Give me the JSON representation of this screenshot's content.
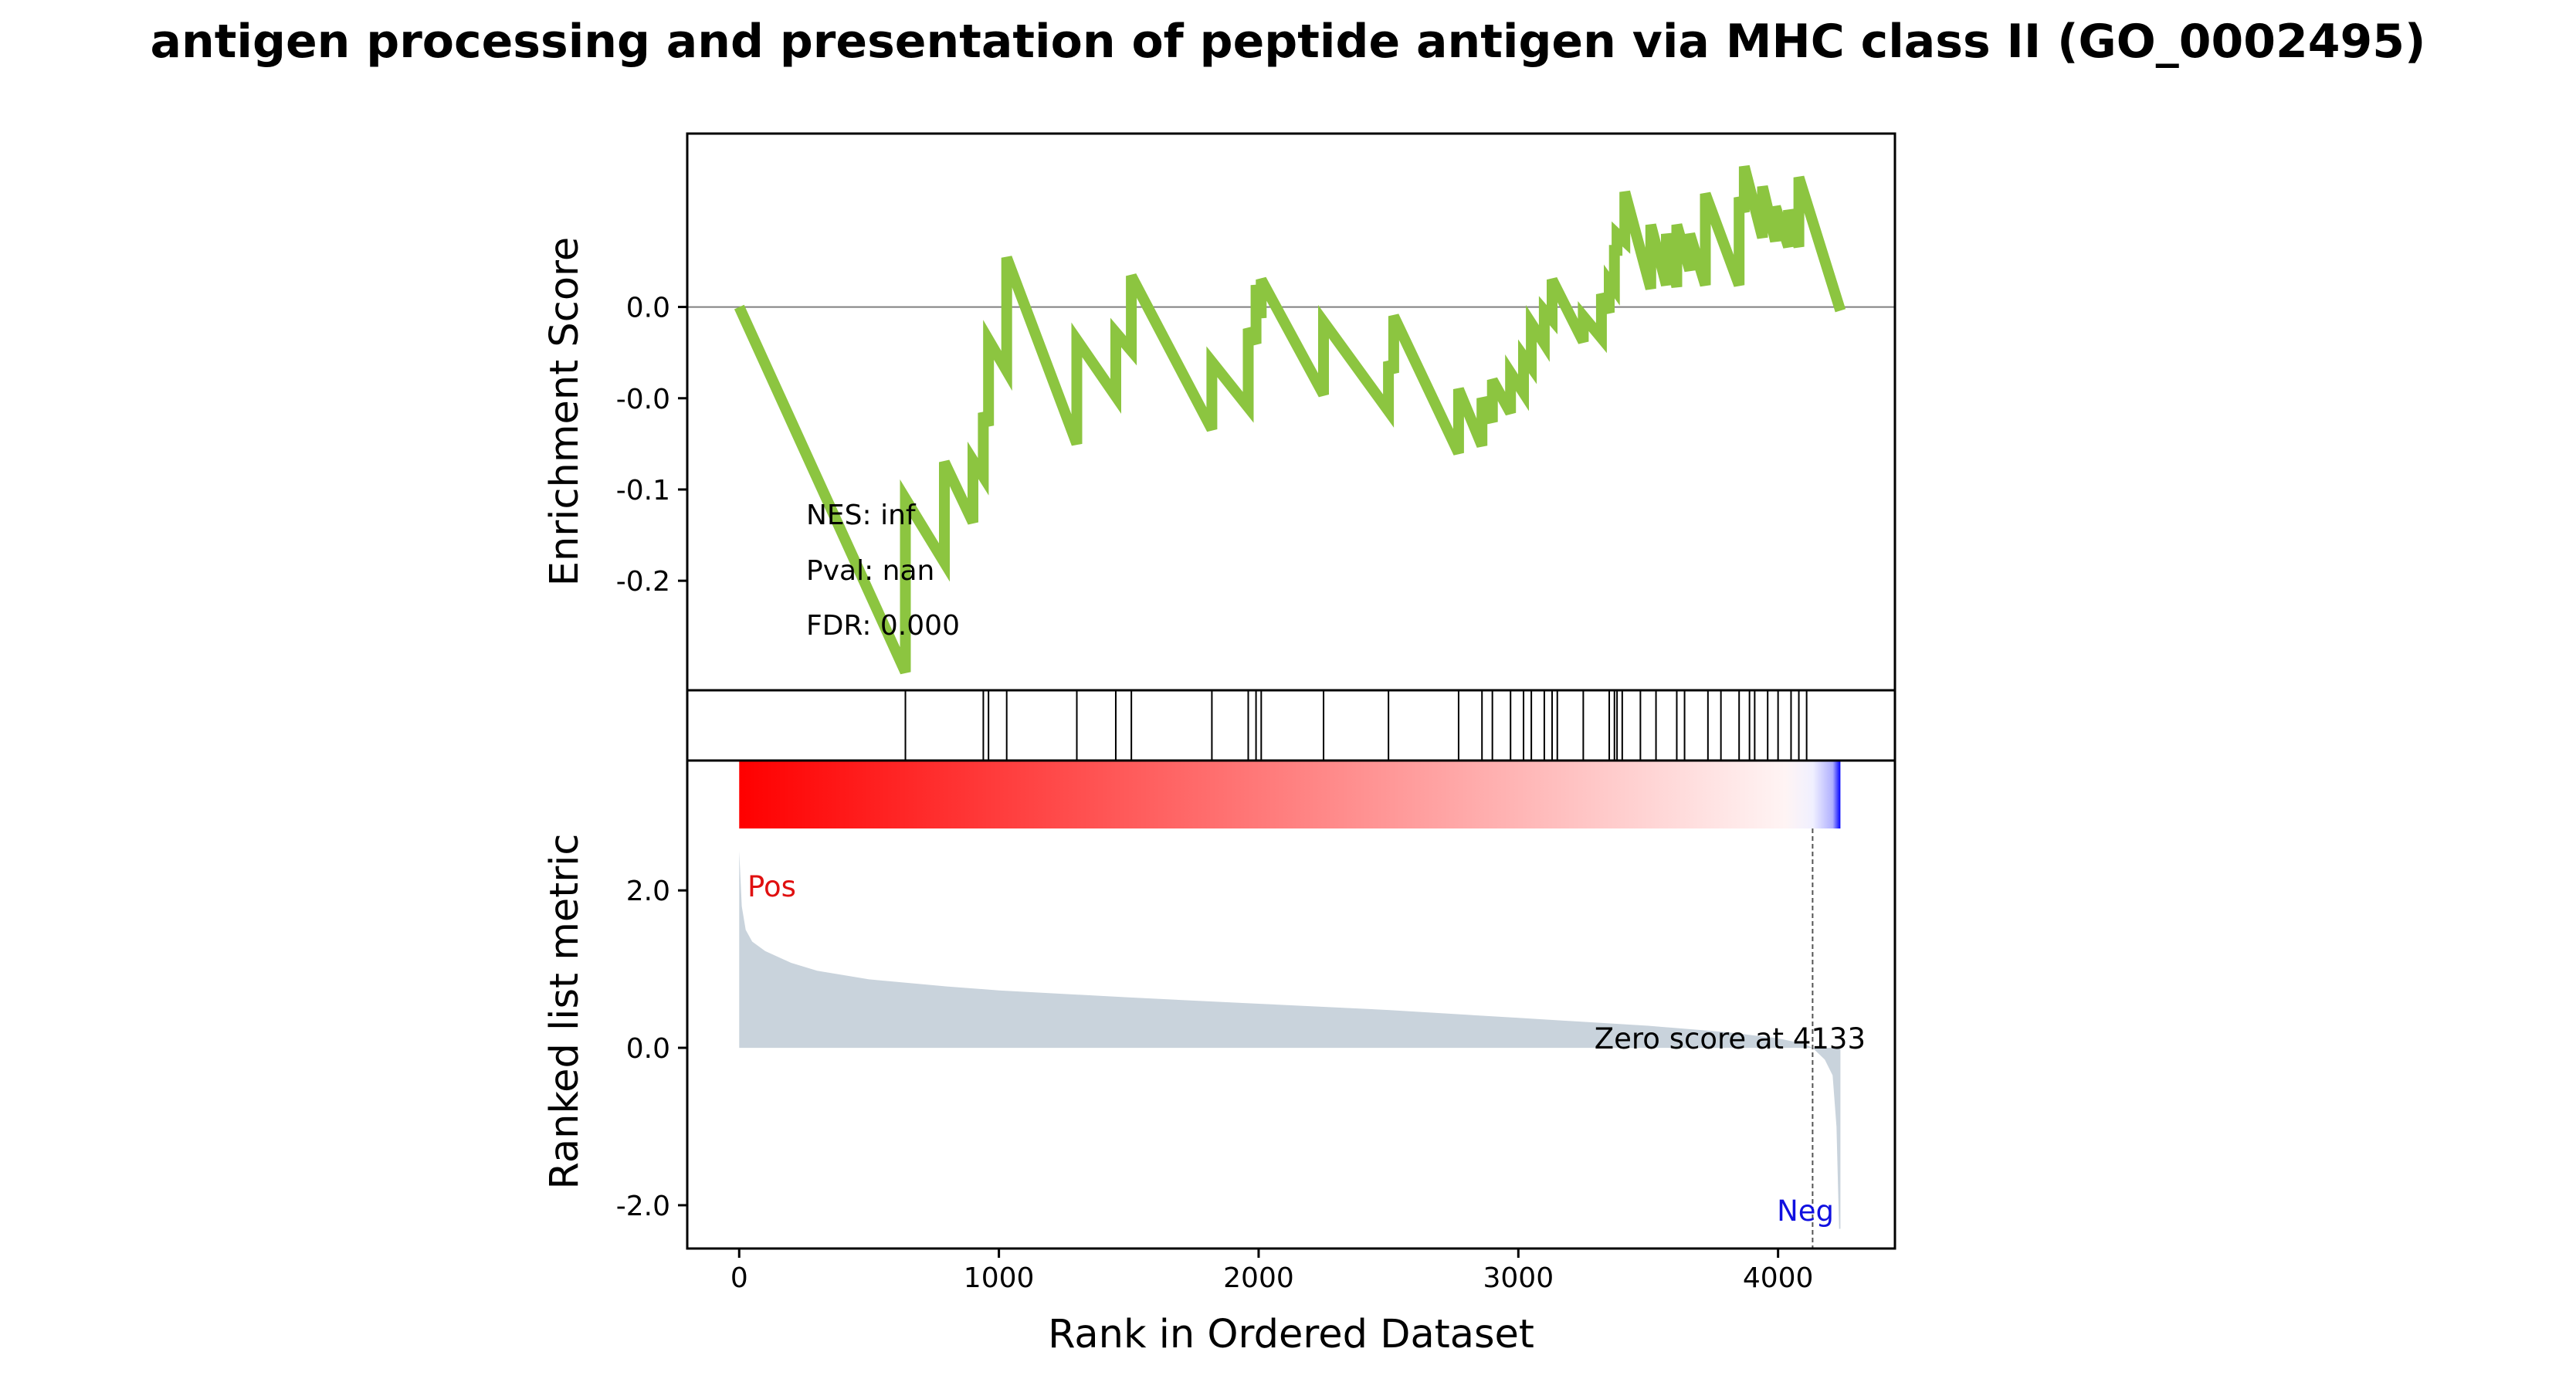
{
  "chart_data": {
    "type": "line",
    "title": "antigen processing and presentation of peptide antigen via MHC class II (GO_0002495)",
    "xlabel": "Rank in Ordered Dataset",
    "xlim": [
      -200,
      4450
    ],
    "x_ticks": [
      0,
      1000,
      2000,
      3000,
      4000
    ],
    "n_genes": 4240,
    "colors": {
      "es_line": "#8cc540",
      "metric_fill": "#c9d3dc",
      "pos_label": "#e01010",
      "neg_label": "#1010e0",
      "heat_pos": "#ff0000",
      "heat_neg": "#0000ff",
      "zero_line": "#808080"
    },
    "enrichment_panel": {
      "ylabel": "Enrichment Score",
      "ylim": [
        -0.21,
        0.095
      ],
      "y_ticks": [
        {
          "value": 0.0,
          "label": "0.0"
        },
        {
          "value": -0.05,
          "label": "-0.0"
        },
        {
          "value": -0.1,
          "label": "-0.1"
        },
        {
          "value": -0.15,
          "label": "-0.2"
        }
      ],
      "hline": 0.0,
      "es_max": 0.075,
      "es_min": -0.2,
      "hit_ranks": [
        640,
        940,
        960,
        1030,
        1300,
        1450,
        1510,
        1820,
        1960,
        1990,
        2010,
        2250,
        2500,
        2770,
        2860,
        2900,
        2970,
        3020,
        3050,
        3100,
        3130,
        3150,
        3250,
        3350,
        3370,
        3380,
        3400,
        3470,
        3530,
        3610,
        3640,
        3730,
        3780,
        3850,
        3890,
        3910,
        3960,
        4000,
        4050,
        4080,
        4110
      ],
      "es_points": [
        {
          "x": 0,
          "y": 0.0
        },
        {
          "x": 640,
          "y": -0.2
        },
        {
          "x": 640,
          "y": -0.105
        },
        {
          "x": 790,
          "y": -0.14
        },
        {
          "x": 790,
          "y": -0.085
        },
        {
          "x": 900,
          "y": -0.118
        },
        {
          "x": 900,
          "y": -0.084
        },
        {
          "x": 940,
          "y": -0.093
        },
        {
          "x": 940,
          "y": -0.058
        },
        {
          "x": 960,
          "y": -0.065
        },
        {
          "x": 960,
          "y": -0.018
        },
        {
          "x": 1030,
          "y": -0.035
        },
        {
          "x": 1030,
          "y": 0.027
        },
        {
          "x": 1300,
          "y": -0.075
        },
        {
          "x": 1300,
          "y": -0.018
        },
        {
          "x": 1450,
          "y": -0.049
        },
        {
          "x": 1450,
          "y": -0.014
        },
        {
          "x": 1510,
          "y": -0.024
        },
        {
          "x": 1510,
          "y": 0.017
        },
        {
          "x": 1820,
          "y": -0.067
        },
        {
          "x": 1820,
          "y": -0.03
        },
        {
          "x": 1960,
          "y": -0.055
        },
        {
          "x": 1960,
          "y": -0.012
        },
        {
          "x": 1990,
          "y": -0.02
        },
        {
          "x": 1990,
          "y": 0.012
        },
        {
          "x": 2010,
          "y": -0.006
        },
        {
          "x": 2010,
          "y": 0.015
        },
        {
          "x": 2250,
          "y": -0.048
        },
        {
          "x": 2250,
          "y": -0.008
        },
        {
          "x": 2500,
          "y": -0.057
        },
        {
          "x": 2500,
          "y": -0.03
        },
        {
          "x": 2520,
          "y": -0.036
        },
        {
          "x": 2520,
          "y": -0.005
        },
        {
          "x": 2770,
          "y": -0.08
        },
        {
          "x": 2770,
          "y": -0.045
        },
        {
          "x": 2860,
          "y": -0.076
        },
        {
          "x": 2860,
          "y": -0.05
        },
        {
          "x": 2900,
          "y": -0.063
        },
        {
          "x": 2900,
          "y": -0.04
        },
        {
          "x": 2970,
          "y": -0.058
        },
        {
          "x": 2970,
          "y": -0.036
        },
        {
          "x": 3020,
          "y": -0.047
        },
        {
          "x": 3020,
          "y": -0.027
        },
        {
          "x": 3050,
          "y": -0.033
        },
        {
          "x": 3050,
          "y": -0.009
        },
        {
          "x": 3100,
          "y": -0.02
        },
        {
          "x": 3100,
          "y": -0.002
        },
        {
          "x": 3130,
          "y": -0.007
        },
        {
          "x": 3130,
          "y": 0.015
        },
        {
          "x": 3250,
          "y": -0.019
        },
        {
          "x": 3250,
          "y": -0.005
        },
        {
          "x": 3320,
          "y": -0.017
        },
        {
          "x": 3320,
          "y": 0.007
        },
        {
          "x": 3350,
          "y": -0.003
        },
        {
          "x": 3350,
          "y": 0.014
        },
        {
          "x": 3370,
          "y": 0.01
        },
        {
          "x": 3370,
          "y": 0.031
        },
        {
          "x": 3380,
          "y": 0.031
        },
        {
          "x": 3380,
          "y": 0.04
        },
        {
          "x": 3410,
          "y": 0.036
        },
        {
          "x": 3410,
          "y": 0.063
        },
        {
          "x": 3510,
          "y": 0.01
        },
        {
          "x": 3510,
          "y": 0.045
        },
        {
          "x": 3570,
          "y": 0.012
        },
        {
          "x": 3570,
          "y": 0.04
        },
        {
          "x": 3610,
          "y": 0.011
        },
        {
          "x": 3610,
          "y": 0.045
        },
        {
          "x": 3660,
          "y": 0.02
        },
        {
          "x": 3660,
          "y": 0.04
        },
        {
          "x": 3720,
          "y": 0.012
        },
        {
          "x": 3720,
          "y": 0.062
        },
        {
          "x": 3850,
          "y": 0.012
        },
        {
          "x": 3850,
          "y": 0.06
        },
        {
          "x": 3870,
          "y": 0.052
        },
        {
          "x": 3870,
          "y": 0.077
        },
        {
          "x": 3940,
          "y": 0.038
        },
        {
          "x": 3940,
          "y": 0.066
        },
        {
          "x": 3990,
          "y": 0.036
        },
        {
          "x": 3990,
          "y": 0.055
        },
        {
          "x": 4040,
          "y": 0.033
        },
        {
          "x": 4040,
          "y": 0.053
        },
        {
          "x": 4080,
          "y": 0.033
        },
        {
          "x": 4080,
          "y": 0.071
        },
        {
          "x": 4240,
          "y": -0.002
        }
      ],
      "nes_text": "NES: inf",
      "pval_text": "Pval: nan",
      "fdr_text": "FDR: 0.000"
    },
    "metric_panel": {
      "ylabel": "Ranked list metric",
      "ylim": [
        -2.55,
        3.65
      ],
      "y_ticks": [
        2.0,
        0.0,
        -2.0
      ],
      "y_tick_labels": [
        "2.0",
        "0.0",
        "-2.0"
      ],
      "profile": [
        {
          "x": 0,
          "y": 2.5
        },
        {
          "x": 10,
          "y": 1.8
        },
        {
          "x": 25,
          "y": 1.5
        },
        {
          "x": 50,
          "y": 1.35
        },
        {
          "x": 100,
          "y": 1.23
        },
        {
          "x": 200,
          "y": 1.08
        },
        {
          "x": 300,
          "y": 0.98
        },
        {
          "x": 500,
          "y": 0.87
        },
        {
          "x": 800,
          "y": 0.78
        },
        {
          "x": 1000,
          "y": 0.73
        },
        {
          "x": 1500,
          "y": 0.64
        },
        {
          "x": 2000,
          "y": 0.56
        },
        {
          "x": 2500,
          "y": 0.48
        },
        {
          "x": 3000,
          "y": 0.38
        },
        {
          "x": 3500,
          "y": 0.28
        },
        {
          "x": 3800,
          "y": 0.2
        },
        {
          "x": 4000,
          "y": 0.12
        },
        {
          "x": 4100,
          "y": 0.05
        },
        {
          "x": 4133,
          "y": 0.0
        },
        {
          "x": 4180,
          "y": -0.15
        },
        {
          "x": 4210,
          "y": -0.35
        },
        {
          "x": 4225,
          "y": -1.0
        },
        {
          "x": 4235,
          "y": -2.3
        },
        {
          "x": 4240,
          "y": -2.3
        }
      ],
      "zero_cross": 4133,
      "zero_text": "Zero score at 4133",
      "pos_text": "Pos",
      "neg_text": "Neg"
    }
  }
}
